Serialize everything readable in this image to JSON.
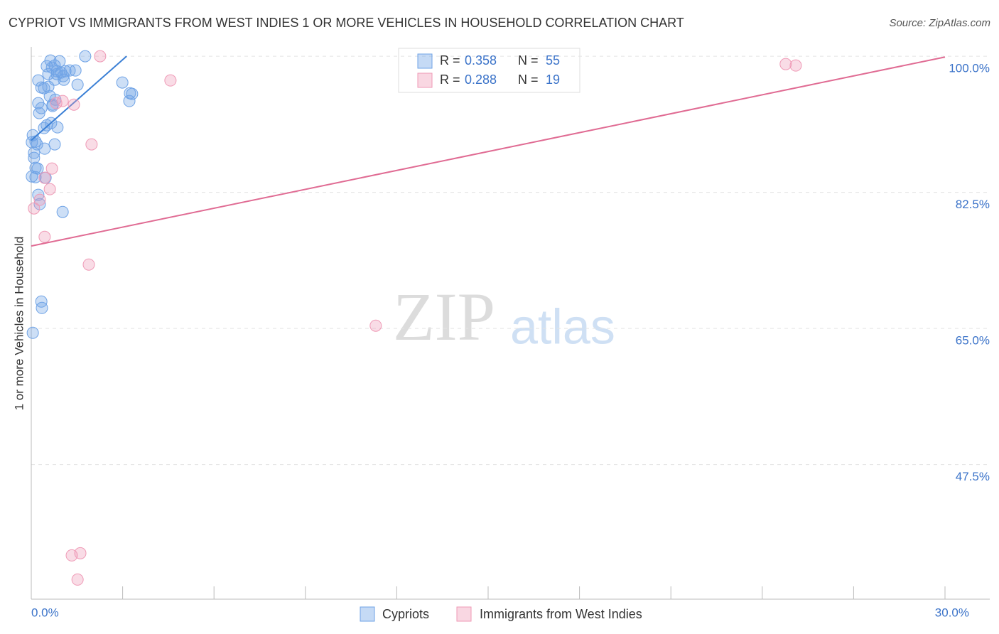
{
  "chart_data": {
    "type": "scatter",
    "title": "CYPRIOT VS IMMIGRANTS FROM WEST INDIES 1 OR MORE VEHICLES IN HOUSEHOLD CORRELATION CHART",
    "source": "Source: ZipAtlas.com",
    "y_label": "1 or more Vehicles in Household",
    "watermark": [
      "ZIP",
      "atlas"
    ],
    "legend_r_label": "R =",
    "legend_n_label": "N =",
    "xlim": [
      0,
      30
    ],
    "ylim": [
      30.2,
      101.2
    ],
    "xticks": [
      {
        "value": 0,
        "label": "0.0%"
      },
      {
        "value": 30,
        "label": "30.0%"
      }
    ],
    "x_minor_ticks": [
      3,
      6,
      9,
      12,
      15,
      18,
      21,
      24,
      27
    ],
    "yticks": [
      {
        "value": 47.5,
        "label": "47.5%"
      },
      {
        "value": 65,
        "label": "65.0%"
      },
      {
        "value": 82.5,
        "label": "82.5%"
      },
      {
        "value": 100,
        "label": "100.0%"
      }
    ],
    "grid": true,
    "series": [
      {
        "name": "Cypriots",
        "color": "#6fa3e6",
        "line_color": "#3a7fd5",
        "r": 0.358,
        "n": 55,
        "x": [
          1.77,
          0.63,
          0.93,
          0.77,
          1.26,
          1.45,
          0.98,
          0.56,
          0.84,
          1.05,
          0.23,
          0.77,
          1.07,
          1.52,
          0.33,
          0.42,
          0.56,
          2.99,
          3.24,
          3.31,
          3.22,
          0.23,
          0.7,
          0.33,
          0.7,
          0.26,
          0.65,
          0.42,
          0.86,
          0.05,
          0.14,
          0.19,
          0.77,
          0.44,
          0.09,
          0.09,
          0.14,
          0.21,
          0.02,
          0.14,
          0.47,
          0.23,
          0.28,
          1.03,
          0.33,
          0.35,
          0.05,
          0.51,
          0.84,
          0.51,
          1.12,
          0.68,
          0.61,
          0.79,
          0.02
        ],
        "y": [
          100.0,
          99.45,
          99.36,
          98.81,
          98.17,
          98.17,
          97.9,
          97.71,
          97.71,
          97.44,
          96.89,
          96.98,
          96.98,
          96.34,
          95.98,
          95.89,
          96.07,
          96.62,
          95.25,
          95.16,
          94.24,
          93.97,
          93.78,
          93.33,
          93.6,
          92.69,
          91.41,
          90.77,
          90.86,
          89.85,
          89.03,
          88.67,
          88.67,
          88.12,
          87.57,
          86.93,
          85.65,
          85.56,
          84.55,
          84.46,
          84.37,
          82.18,
          80.99,
          79.98,
          68.46,
          67.64,
          64.44,
          91.13,
          98.08,
          98.72,
          98.08,
          98.54,
          94.88,
          94.42,
          88.94
        ],
        "trend": {
          "x": [
            0,
            3.13
          ],
          "y": [
            89.2,
            100
          ]
        }
      },
      {
        "name": "Immigrants from West Indies",
        "color": "#ef9ab6",
        "line_color": "#e06b93",
        "r": 0.288,
        "n": 19,
        "x": [
          2.26,
          4.57,
          24.77,
          25.1,
          1.03,
          1.4,
          0.82,
          1.98,
          0.68,
          0.44,
          0.61,
          0.28,
          0.09,
          0.44,
          1.89,
          11.31,
          1.61,
          1.33,
          1.52
        ],
        "y": [
          100.0,
          96.89,
          98.99,
          98.81,
          94.24,
          93.78,
          93.97,
          88.67,
          85.56,
          84.37,
          82.91,
          81.54,
          80.44,
          76.78,
          73.22,
          65.36,
          36.11,
          35.83,
          32.72
        ],
        "trend": {
          "x": [
            0,
            30
          ],
          "y": [
            75.6,
            99.9
          ]
        }
      }
    ]
  }
}
